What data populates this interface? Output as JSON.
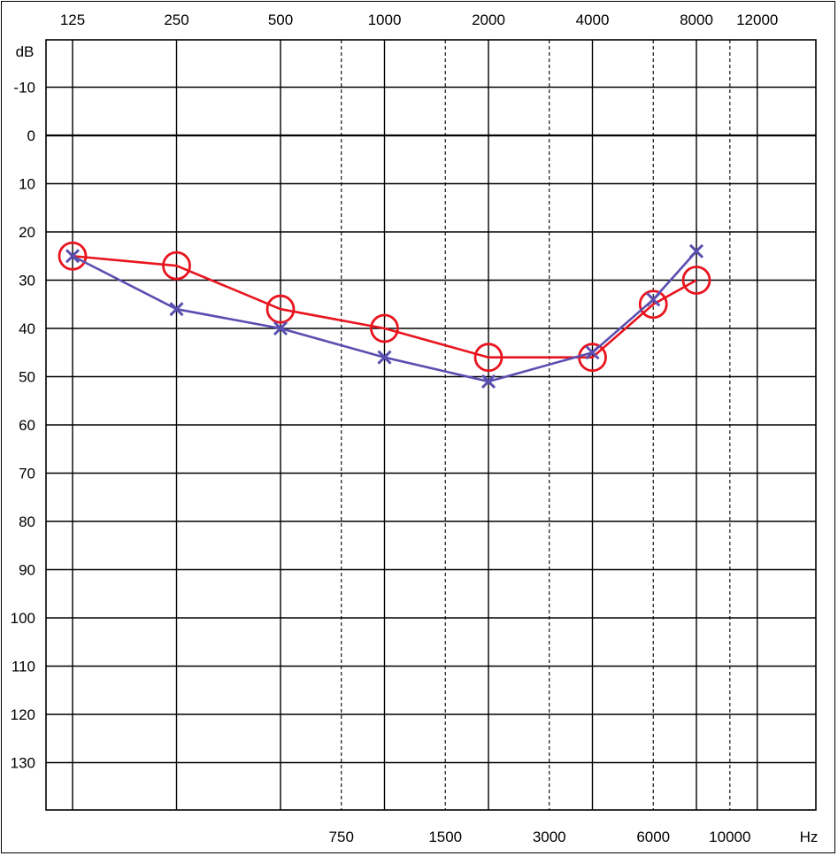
{
  "chart_data": {
    "type": "line",
    "title": "",
    "ylabel": "dB",
    "xlabel": "Hz",
    "y_scale": "inverted",
    "ylim": [
      -20,
      140
    ],
    "y_ticks": [
      "-10",
      "0",
      "10",
      "20",
      "30",
      "40",
      "50",
      "60",
      "70",
      "80",
      "90",
      "100",
      "110",
      "120",
      "130"
    ],
    "x_scale": "log2",
    "x_ticks_top": [
      "125",
      "250",
      "500",
      "1000",
      "2000",
      "4000",
      "8000",
      "12000"
    ],
    "x_ticks_bottom": [
      "750",
      "1500",
      "3000",
      "6000",
      "10000"
    ],
    "grid": true,
    "series": [
      {
        "marker": "circle",
        "color": "#e8141e",
        "x": [
          125,
          250,
          500,
          1000,
          2000,
          4000,
          6000,
          8000
        ],
        "y": [
          25,
          27,
          36,
          40,
          46,
          46,
          35,
          30
        ]
      },
      {
        "marker": "x",
        "color": "#5a4fb0",
        "x": [
          125,
          250,
          500,
          1000,
          2000,
          4000,
          6000,
          8000
        ],
        "y": [
          25,
          36,
          40,
          46,
          51,
          45,
          34,
          24
        ]
      }
    ]
  }
}
